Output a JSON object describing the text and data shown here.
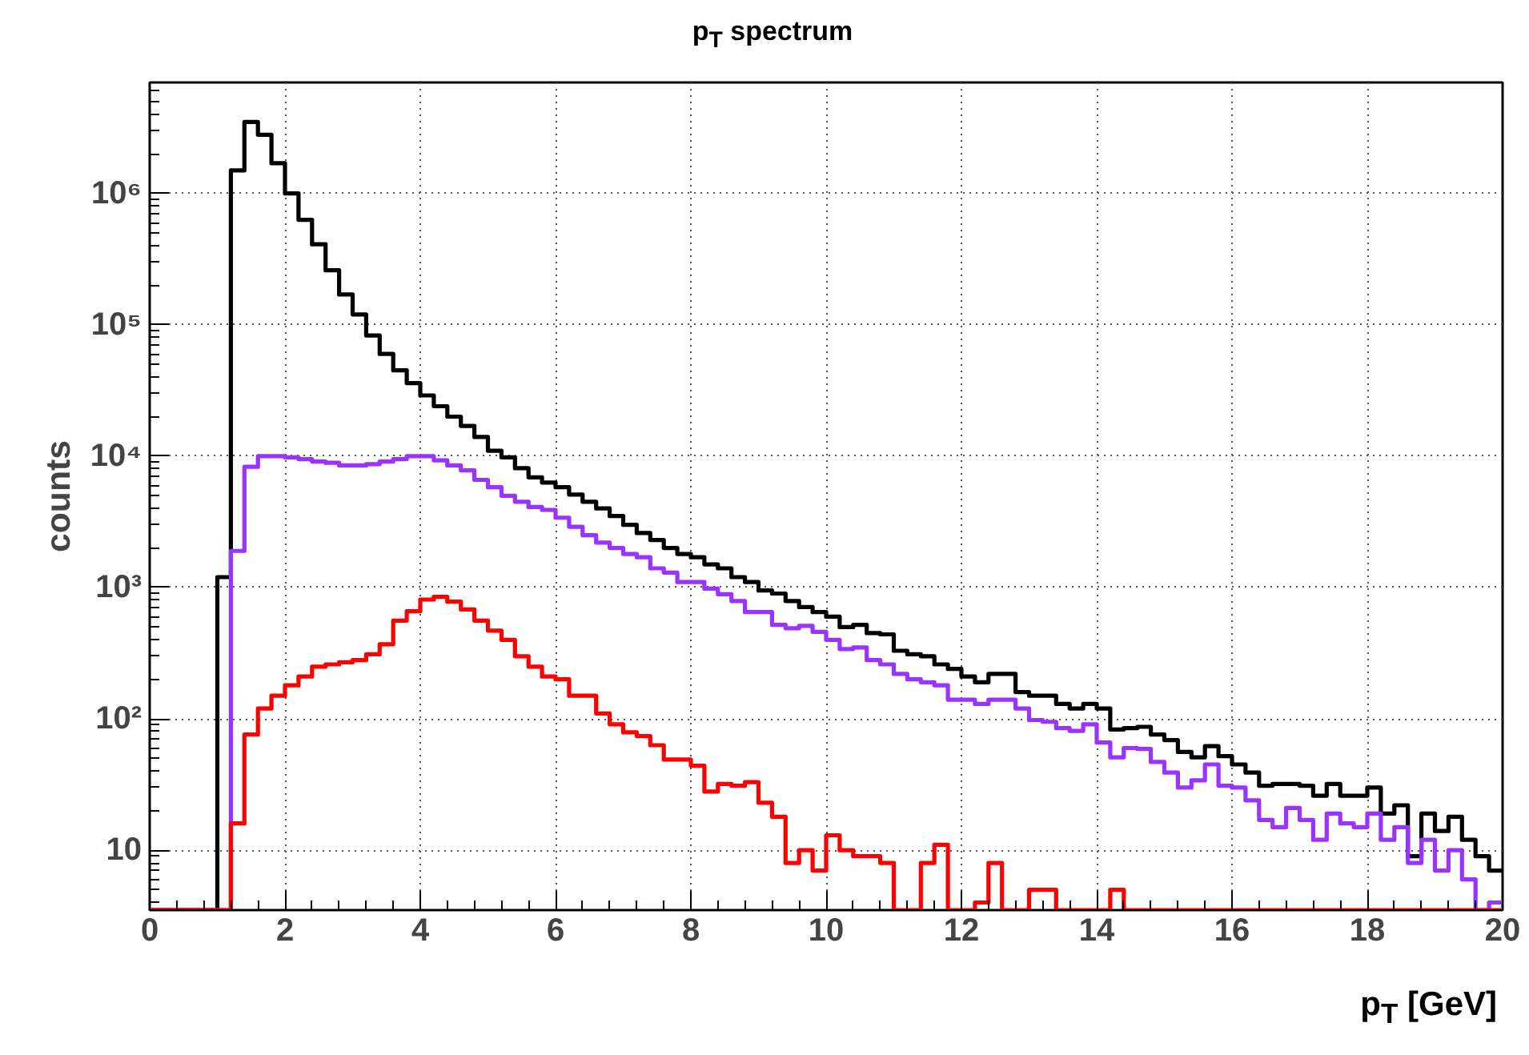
{
  "chart_data": {
    "type": "histogram",
    "title": "p$_{T}$ spectrum",
    "xlabel": "p$_{T}$ [GeV]",
    "ylabel": "counts",
    "bins": [
      0,
      0.2,
      0.4,
      0.6,
      0.8,
      1,
      1.2,
      1.4,
      1.6,
      1.8,
      2,
      2.2,
      2.4,
      2.6,
      2.8,
      3,
      3.2,
      3.4,
      3.6,
      3.8,
      4,
      4.2,
      4.4,
      4.6,
      4.8,
      5,
      5.2,
      5.4,
      5.6,
      5.8,
      6,
      6.2,
      6.4,
      6.6,
      6.8,
      7,
      7.2,
      7.4,
      7.6,
      7.8,
      8,
      8.2,
      8.4,
      8.6,
      8.8,
      9,
      9.2,
      9.4,
      9.6,
      9.8,
      10,
      10.2,
      10.4,
      10.6,
      10.8,
      11,
      11.2,
      11.4,
      11.6,
      11.8,
      12,
      12.2,
      12.4,
      12.6,
      12.8,
      13,
      13.2,
      13.4,
      13.6,
      13.8,
      14,
      14.2,
      14.4,
      14.6,
      14.8,
      15,
      15.2,
      15.4,
      15.6,
      15.8,
      16,
      16.2,
      16.4,
      16.6,
      16.8,
      17,
      17.2,
      17.4,
      17.6,
      17.8,
      18,
      18.2,
      18.4,
      18.6,
      18.8,
      19,
      19.2,
      19.4,
      19.6,
      19.8,
      20
    ],
    "series": [
      {
        "color": "#000000",
        "values": [
          null,
          null,
          null,
          null,
          null,
          1200,
          1500000,
          3500000,
          2800000,
          1700000,
          1000000,
          630000,
          410000,
          260000,
          170000,
          120000,
          83000,
          60000,
          45000,
          36000,
          29000,
          24000,
          20000,
          17000,
          14000,
          11000,
          9800,
          8100,
          6900,
          6300,
          5800,
          5100,
          4500,
          4000,
          3500,
          3000,
          2600,
          2300,
          2000,
          1800,
          1700,
          1500,
          1400,
          1200,
          1100,
          950,
          900,
          790,
          710,
          650,
          600,
          500,
          520,
          450,
          440,
          330,
          310,
          300,
          260,
          240,
          210,
          190,
          220,
          220,
          160,
          150,
          150,
          130,
          120,
          130,
          120,
          83,
          85,
          87,
          76,
          69,
          56,
          51,
          62,
          52,
          45,
          39,
          31,
          32,
          32,
          31,
          26,
          32,
          26,
          26,
          30,
          19,
          22,
          9,
          19,
          14,
          18,
          12,
          9,
          7
        ]
      },
      {
        "color": "#9933ff",
        "values": [
          null,
          null,
          null,
          null,
          null,
          null,
          1900,
          8300,
          10000,
          10000,
          9800,
          9500,
          9100,
          8900,
          8500,
          8500,
          8700,
          9100,
          9500,
          10000,
          10000,
          9300,
          8500,
          7800,
          6600,
          5800,
          5000,
          4500,
          4100,
          3900,
          3400,
          2900,
          2500,
          2200,
          2000,
          1800,
          1700,
          1400,
          1300,
          1100,
          1100,
          980,
          890,
          790,
          650,
          650,
          520,
          490,
          510,
          460,
          400,
          340,
          350,
          280,
          260,
          220,
          200,
          190,
          180,
          140,
          140,
          130,
          140,
          140,
          120,
          98,
          95,
          85,
          81,
          91,
          66,
          51,
          60,
          59,
          47,
          39,
          30,
          34,
          45,
          31,
          30,
          24,
          17,
          15,
          21,
          17,
          12,
          19,
          16,
          15,
          19,
          12,
          15,
          8,
          12,
          7,
          10,
          6,
          null,
          4
        ]
      },
      {
        "color": "#ff0000",
        "values": [
          null,
          null,
          null,
          null,
          null,
          null,
          16,
          76,
          120,
          150,
          180,
          210,
          250,
          260,
          270,
          280,
          310,
          370,
          560,
          660,
          810,
          850,
          780,
          680,
          560,
          470,
          400,
          300,
          250,
          210,
          200,
          150,
          150,
          110,
          91,
          79,
          74,
          63,
          49,
          49,
          44,
          28,
          32,
          31,
          33,
          23,
          18,
          8,
          10,
          7,
          13,
          10,
          9,
          9,
          8,
          null,
          null,
          8,
          11,
          null,
          null,
          4,
          8,
          null,
          null,
          5,
          5,
          null,
          null,
          null,
          null,
          5,
          null,
          null,
          null,
          null,
          null,
          null,
          null,
          null,
          null,
          null,
          null,
          null,
          null,
          null,
          null,
          null,
          null,
          null,
          null,
          null,
          null,
          null,
          null,
          null,
          null,
          null,
          null,
          null
        ]
      }
    ],
    "xlim": [
      0,
      20
    ],
    "xticks": [
      0,
      2,
      4,
      6,
      8,
      10,
      12,
      14,
      16,
      18,
      20
    ],
    "ylim": [
      3.5,
      7000000
    ],
    "yticks": [
      {
        "value": 10,
        "label": "10"
      },
      {
        "value": 100,
        "label": "10²"
      },
      {
        "value": 1000,
        "label": "10³"
      },
      {
        "value": 10000,
        "label": "10⁴"
      },
      {
        "value": 100000,
        "label": "10⁵"
      },
      {
        "value": 1000000,
        "label": "10⁶"
      }
    ],
    "log": "y",
    "grid": true,
    "line_style": "solid"
  }
}
